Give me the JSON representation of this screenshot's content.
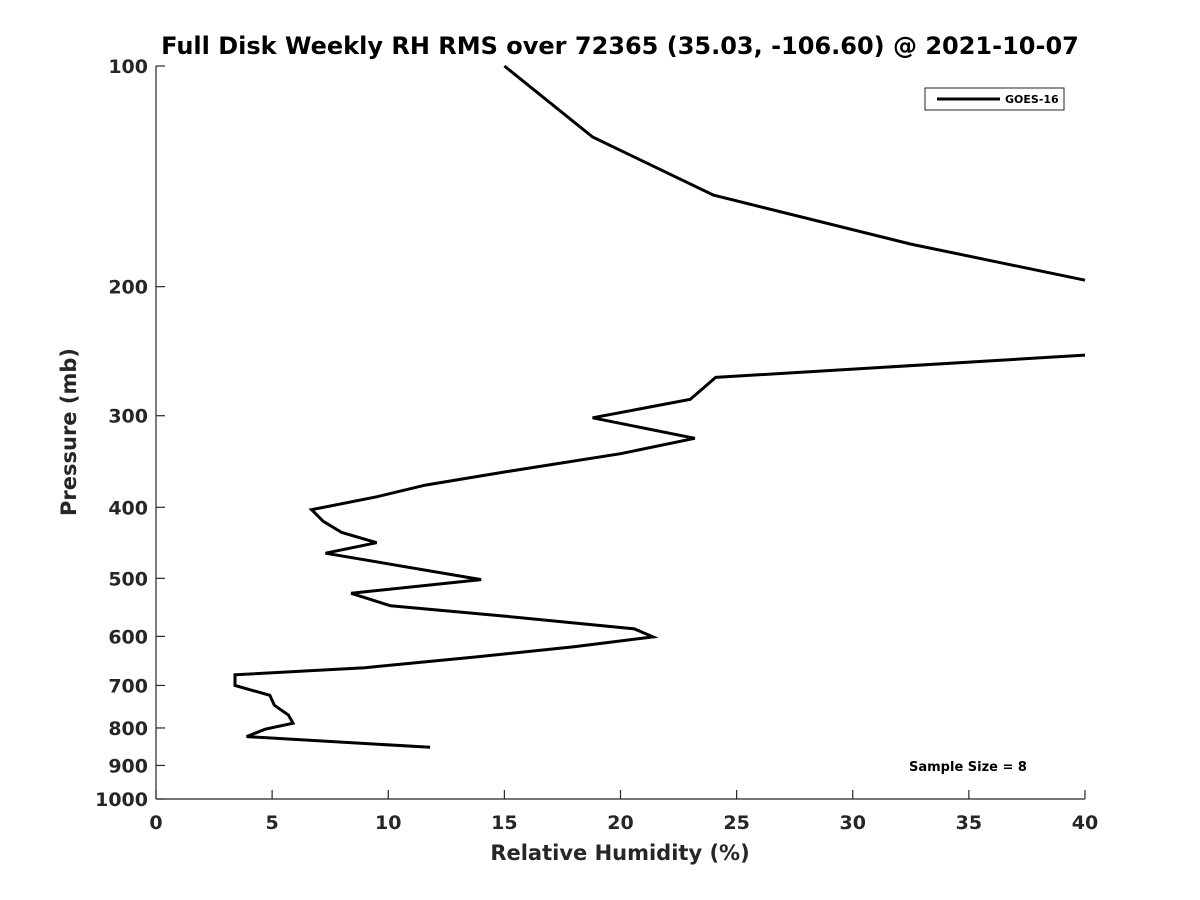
{
  "chart_data": {
    "type": "line",
    "title": "Full Disk Weekly RH RMS over 72365 (35.03, -106.60) @ 2021-10-07",
    "xlabel": "Relative Humidity (%)",
    "ylabel": "Pressure (mb)",
    "xlim": [
      0,
      40
    ],
    "ylim": [
      100,
      1000
    ],
    "y_scale": "log",
    "y_reversed": true,
    "x_ticks": [
      "0",
      "5",
      "10",
      "15",
      "20",
      "25",
      "30",
      "35",
      "40"
    ],
    "y_ticks": [
      "100",
      "200",
      "300",
      "400",
      "500",
      "600",
      "700",
      "800",
      "900",
      "1000"
    ],
    "grid": false,
    "legend_position": "top-right",
    "annotation": "Sample Size = 8",
    "line_color": "#000000",
    "series": [
      {
        "name": "GOES-16",
        "points": [
          [
            15.0,
            100
          ],
          [
            18.8,
            125
          ],
          [
            24.0,
            150
          ],
          [
            32.5,
            175
          ],
          [
            40.0,
            196
          ],
          null,
          [
            40.0,
            248
          ],
          [
            24.1,
            266
          ],
          [
            23.0,
            285
          ],
          [
            18.8,
            302
          ],
          [
            23.2,
            322
          ],
          [
            20.0,
            338
          ],
          [
            15.0,
            358
          ],
          [
            11.6,
            373
          ],
          [
            9.5,
            387
          ],
          [
            6.7,
            403
          ],
          [
            7.2,
            418
          ],
          [
            8.0,
            433
          ],
          [
            9.5,
            447
          ],
          [
            7.3,
            462
          ],
          [
            14.0,
            502
          ],
          [
            8.4,
            524
          ],
          [
            10.1,
            545
          ],
          [
            15.0,
            563
          ],
          [
            20.6,
            586
          ],
          [
            21.4,
            601
          ],
          [
            18.0,
            620
          ],
          [
            13.8,
            640
          ],
          [
            9.0,
            662
          ],
          [
            3.4,
            677
          ],
          [
            3.4,
            700
          ],
          [
            4.9,
            722
          ],
          [
            5.1,
            745
          ],
          [
            5.7,
            768
          ],
          [
            5.9,
            788
          ],
          [
            4.7,
            803
          ],
          [
            3.9,
            822
          ],
          [
            11.8,
            850
          ]
        ]
      }
    ]
  }
}
